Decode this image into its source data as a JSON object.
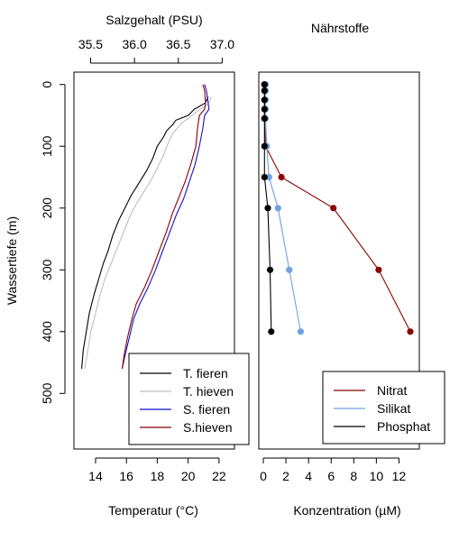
{
  "chart_data": [
    {
      "type": "line",
      "title": "Salzgehalt (PSU)",
      "xlabel": "Temperatur (°C)",
      "ylabel": "Wassertiefe (m)",
      "secondary_xlabel": "Salzgehalt (PSU)",
      "xlim": [
        12.6,
        23.0
      ],
      "secondary_xlim": [
        35.31,
        37.14
      ],
      "ylim": [
        590,
        -20
      ],
      "y_reversed": true,
      "x_ticks": [
        14,
        16,
        18,
        20,
        22
      ],
      "secondary_x_ticks": [
        35.5,
        36.0,
        36.5,
        37.0
      ],
      "y_ticks": [
        0,
        100,
        200,
        300,
        400,
        500
      ],
      "grid": false,
      "legend_position": "bottom-right",
      "series": [
        {
          "name": "T. fieren",
          "axis": "temperature",
          "color": "#000000",
          "points": [
            [
              21.3,
              20
            ],
            [
              21.1,
              30
            ],
            [
              20.4,
              40
            ],
            [
              20.0,
              50
            ],
            [
              19.5,
              55
            ],
            [
              19.2,
              58
            ],
            [
              19.0,
              65
            ],
            [
              18.6,
              75
            ],
            [
              18.4,
              85
            ],
            [
              18.0,
              100
            ],
            [
              17.7,
              120
            ],
            [
              17.3,
              140
            ],
            [
              16.8,
              160
            ],
            [
              16.3,
              180
            ],
            [
              15.9,
              200
            ],
            [
              15.5,
              220
            ],
            [
              15.1,
              245
            ],
            [
              14.8,
              270
            ],
            [
              14.5,
              290
            ],
            [
              14.2,
              315
            ],
            [
              13.9,
              340
            ],
            [
              13.6,
              370
            ],
            [
              13.4,
              400
            ],
            [
              13.2,
              430
            ],
            [
              13.1,
              460
            ]
          ]
        },
        {
          "name": "T. hieven",
          "axis": "temperature",
          "color": "#bfbfbf",
          "points": [
            [
              21.5,
              20
            ],
            [
              21.3,
              32
            ],
            [
              20.5,
              45
            ],
            [
              20.0,
              55
            ],
            [
              19.6,
              62
            ],
            [
              19.3,
              70
            ],
            [
              19.0,
              80
            ],
            [
              18.7,
              95
            ],
            [
              18.4,
              115
            ],
            [
              18.0,
              135
            ],
            [
              17.6,
              155
            ],
            [
              17.1,
              175
            ],
            [
              16.6,
              195
            ],
            [
              16.2,
              215
            ],
            [
              15.8,
              240
            ],
            [
              15.4,
              265
            ],
            [
              15.0,
              290
            ],
            [
              14.6,
              315
            ],
            [
              14.3,
              340
            ],
            [
              14.0,
              370
            ],
            [
              13.7,
              400
            ],
            [
              13.5,
              430
            ],
            [
              13.3,
              460
            ]
          ]
        },
        {
          "name": "S. fieren",
          "axis": "salinity",
          "color": "#1010d0",
          "points": [
            [
              36.8,
              0
            ],
            [
              36.82,
              10
            ],
            [
              36.84,
              30
            ],
            [
              36.85,
              40
            ],
            [
              36.8,
              50
            ],
            [
              36.78,
              70
            ],
            [
              36.74,
              100
            ],
            [
              36.69,
              130
            ],
            [
              36.62,
              160
            ],
            [
              36.56,
              185
            ],
            [
              36.48,
              210
            ],
            [
              36.4,
              240
            ],
            [
              36.32,
              270
            ],
            [
              36.24,
              300
            ],
            [
              36.15,
              330
            ],
            [
              36.06,
              355
            ],
            [
              35.99,
              380
            ],
            [
              35.94,
              410
            ],
            [
              35.89,
              440
            ],
            [
              35.86,
              460
            ]
          ]
        },
        {
          "name": "S.hieven",
          "axis": "salinity",
          "color": "#8b0000",
          "points": [
            [
              36.78,
              0
            ],
            [
              36.8,
              10
            ],
            [
              36.81,
              30
            ],
            [
              36.8,
              40
            ],
            [
              36.74,
              50
            ],
            [
              36.72,
              70
            ],
            [
              36.7,
              100
            ],
            [
              36.64,
              130
            ],
            [
              36.57,
              160
            ],
            [
              36.5,
              185
            ],
            [
              36.43,
              210
            ],
            [
              36.36,
              240
            ],
            [
              36.28,
              270
            ],
            [
              36.2,
              300
            ],
            [
              36.11,
              330
            ],
            [
              36.02,
              355
            ],
            [
              35.97,
              380
            ],
            [
              35.92,
              410
            ],
            [
              35.88,
              440
            ],
            [
              35.86,
              460
            ]
          ]
        }
      ]
    },
    {
      "type": "line",
      "title": "Nährstoffe",
      "xlabel": "Konzentration (µM)",
      "ylabel": "",
      "xlim": [
        -0.4,
        13.8
      ],
      "ylim": [
        590,
        -20
      ],
      "y_reversed": true,
      "x_ticks": [
        0,
        2,
        4,
        6,
        8,
        10,
        12
      ],
      "grid": false,
      "legend_position": "bottom-right",
      "depths": [
        0,
        10,
        25,
        40,
        55,
        100,
        150,
        200,
        300,
        400
      ],
      "series": [
        {
          "name": "Nitrat",
          "color": "#8b0000",
          "values": [
            0.1,
            0.1,
            0.1,
            0.1,
            0.1,
            0.2,
            1.6,
            6.2,
            10.2,
            13.0
          ]
        },
        {
          "name": "Silikat",
          "color": "#6fa0e0",
          "values": [
            0.2,
            0.2,
            0.2,
            0.2,
            0.2,
            0.3,
            0.5,
            1.3,
            2.3,
            3.3
          ]
        },
        {
          "name": "Phosphat",
          "color": "#000000",
          "values": [
            0.1,
            0.1,
            0.1,
            0.1,
            0.1,
            0.1,
            0.1,
            0.4,
            0.6,
            0.7
          ]
        }
      ]
    }
  ]
}
